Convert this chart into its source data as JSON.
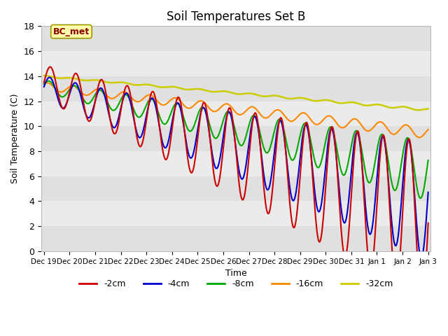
{
  "title": "Soil Temperatures Set B",
  "xlabel": "Time",
  "ylabel": "Soil Temperature (C)",
  "annotation": "BC_met",
  "ylim": [
    0,
    18
  ],
  "background_color": "#ffffff",
  "plot_bg_color": "#f0f0f0",
  "series_colors": {
    "-2cm": "#cc0000",
    "-4cm": "#0000cc",
    "-8cm": "#00aa00",
    "-16cm": "#ff8800",
    "-32cm": "#cccc00"
  },
  "series_lw": {
    "-2cm": 1.5,
    "-4cm": 1.5,
    "-8cm": 1.5,
    "-16cm": 1.5,
    "-32cm": 1.8
  },
  "tick_labels": [
    "Dec 19",
    "Dec 20",
    "Dec 21",
    "Dec 22",
    "Dec 23",
    "Dec 24",
    "Dec 25",
    "Dec 26",
    "Dec 27",
    "Dec 28",
    "Dec 29",
    "Dec 30",
    "Dec 31",
    "Jan 1",
    "Jan 2",
    "Jan 3"
  ],
  "n_days": 15,
  "pts_per_day": 48,
  "band_colors": [
    "#e0e0e0",
    "#ebebeb"
  ]
}
